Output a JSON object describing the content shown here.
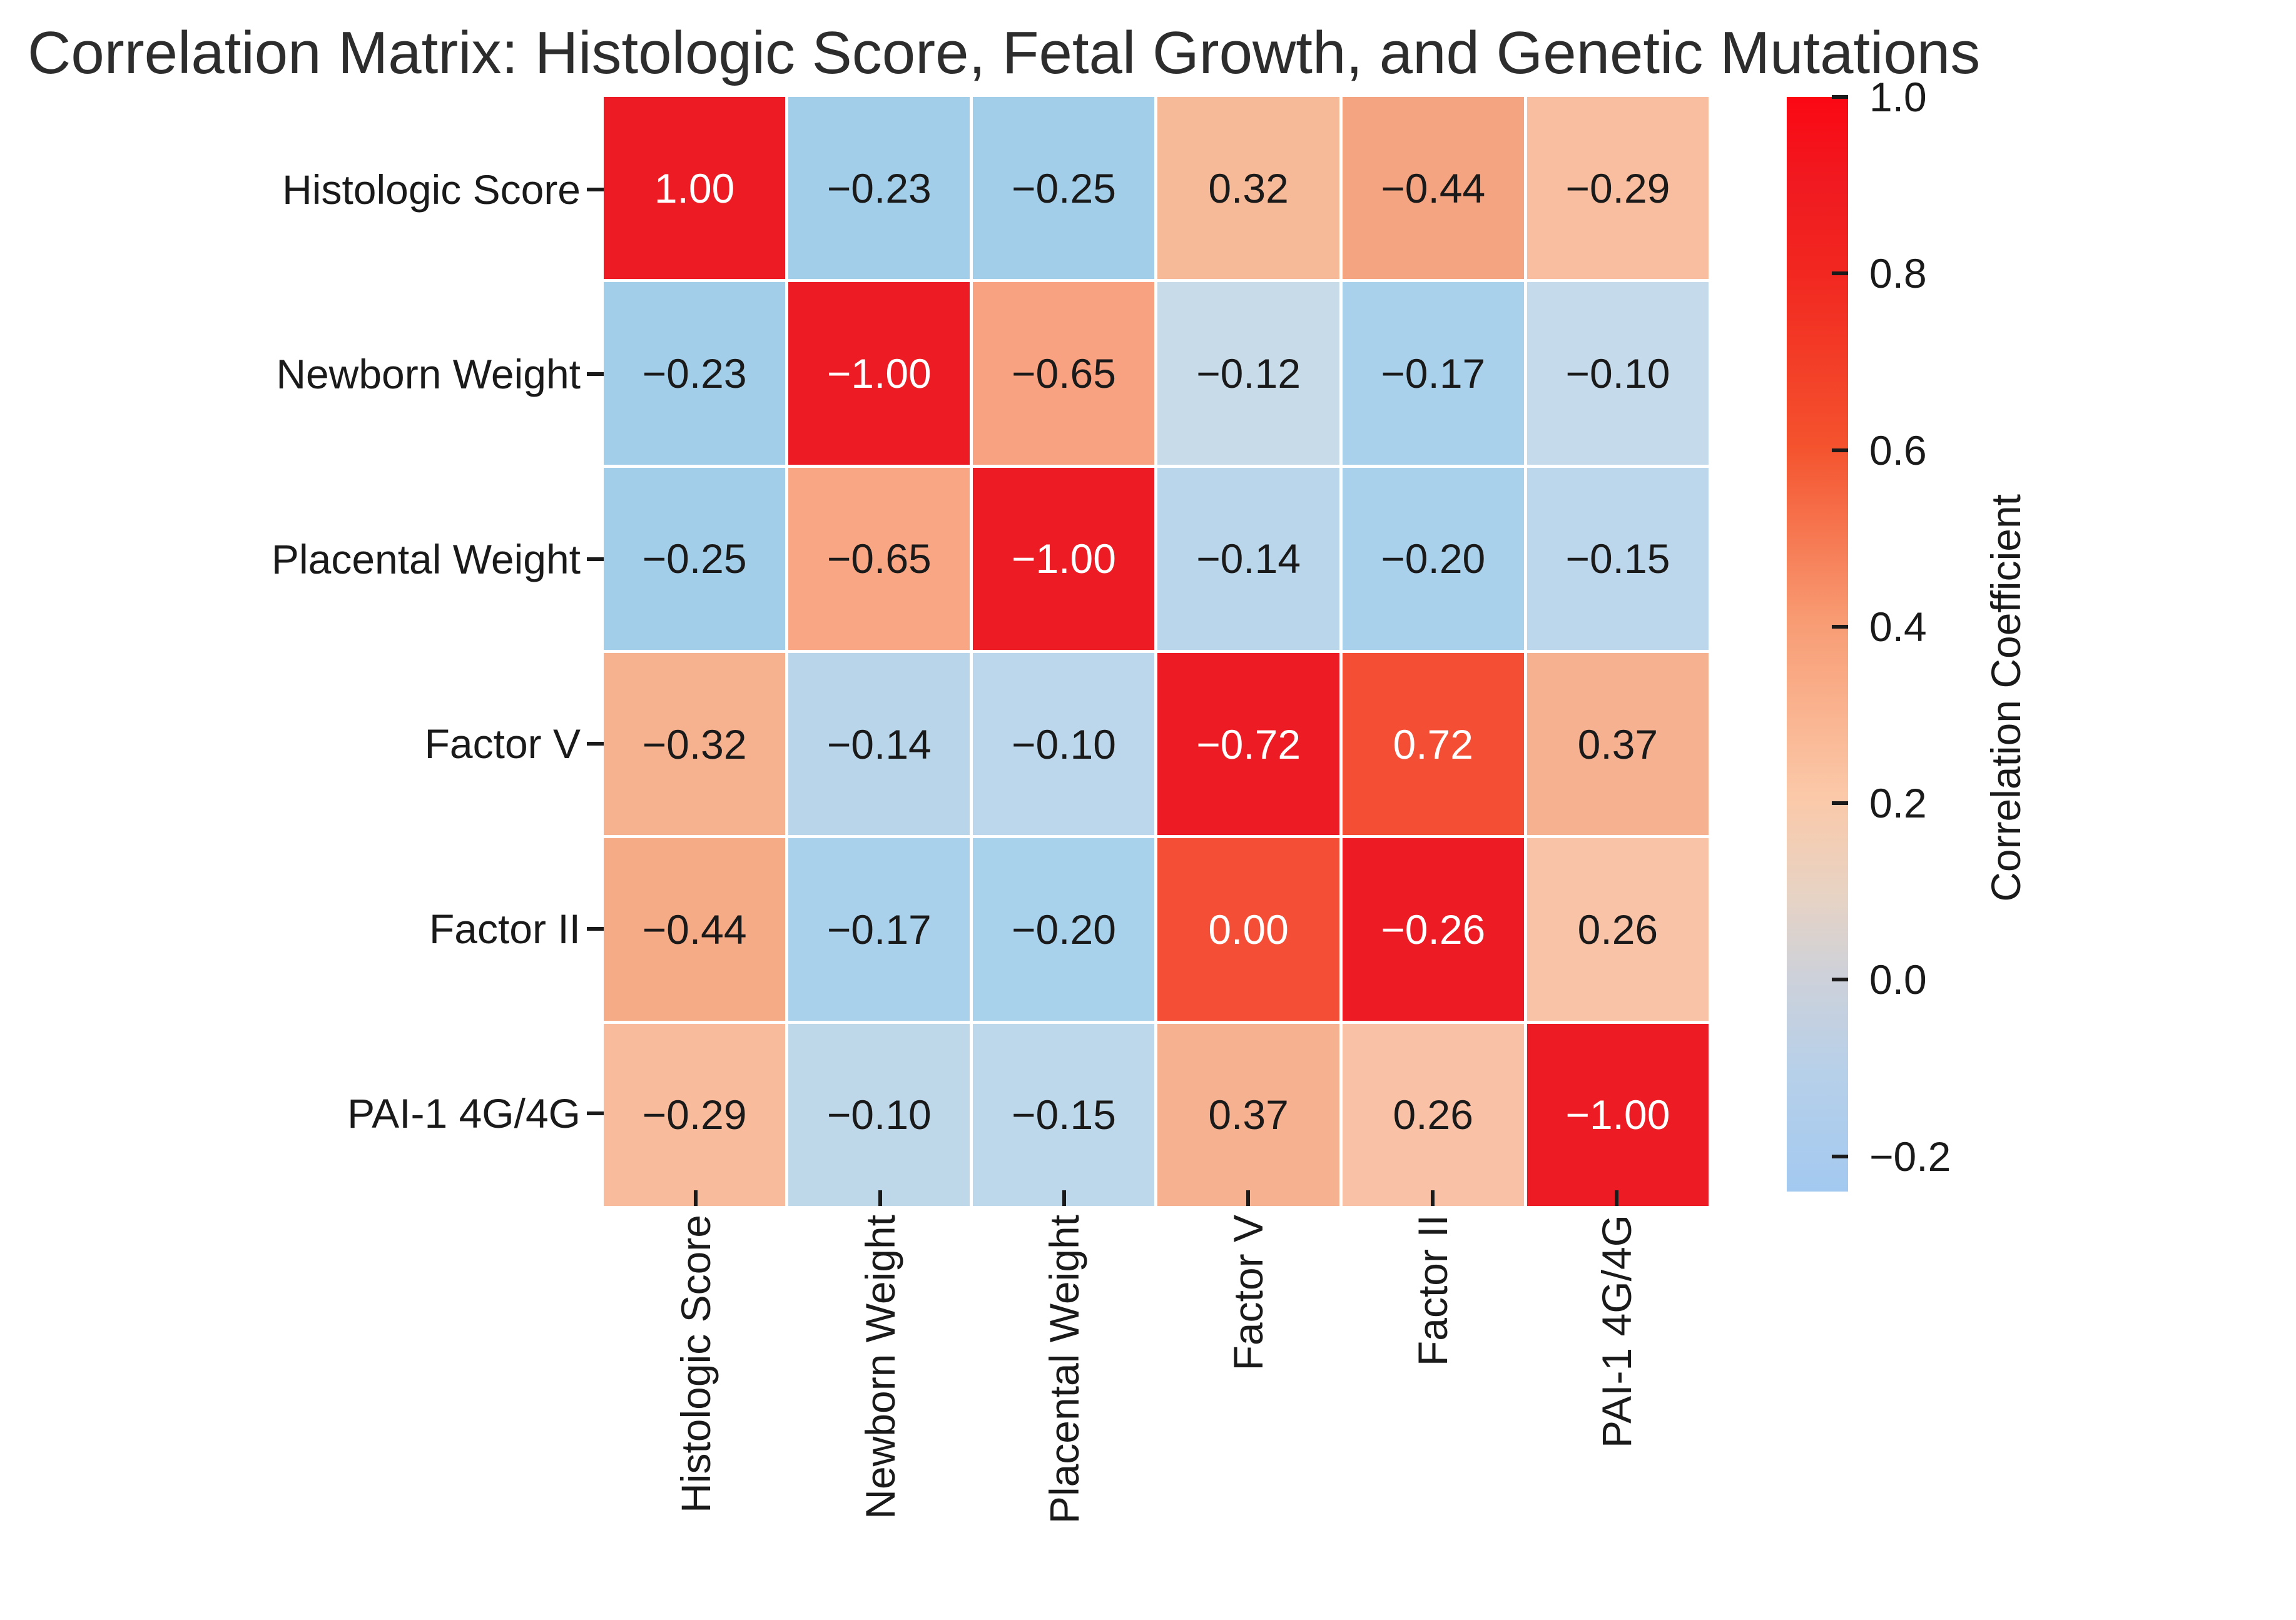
{
  "chart_data": {
    "type": "heatmap",
    "title": "Correlation Matrix: Histologic Score, Fetal Growth, and Genetic Mutations",
    "row_labels": [
      "Histologic Score",
      "Newborn Weight",
      "Placental Weight",
      "Factor V",
      "Factor II",
      "PAI-1 4G/4G"
    ],
    "col_labels": [
      "Histologic Score",
      "Newborn Weight",
      "Placental Weight",
      "Factor V",
      "Factor II",
      "PAI-1 4G/4G"
    ],
    "cell_text": [
      [
        "1.00",
        "−0.23",
        "−0.25",
        "0.32",
        "−0.44",
        "−0.29"
      ],
      [
        "−0.23",
        "−1.00",
        "−0.65",
        "−0.12",
        "−0.17",
        "−0.10"
      ],
      [
        "−0.25",
        "−0.65",
        "−1.00",
        "−0.14",
        "−0.20",
        "−0.15"
      ],
      [
        "−0.32",
        "−0.14",
        "−0.10",
        "−0.72",
        "0.72",
        "0.37"
      ],
      [
        "−0.44",
        "−0.17",
        "−0.20",
        "0.00",
        "−0.26",
        "0.26"
      ],
      [
        "−0.29",
        "−0.10",
        "−0.15",
        "0.37",
        "0.26",
        "−1.00"
      ]
    ],
    "values": [
      [
        1.0,
        -0.23,
        -0.25,
        0.32,
        -0.44,
        -0.29
      ],
      [
        -0.23,
        -1.0,
        -0.65,
        -0.12,
        -0.17,
        -0.1
      ],
      [
        -0.25,
        -0.65,
        -1.0,
        -0.14,
        -0.2,
        -0.15
      ],
      [
        -0.32,
        -0.14,
        -0.1,
        -0.72,
        0.72,
        0.37
      ],
      [
        -0.44,
        -0.17,
        -0.2,
        0.0,
        -0.26,
        0.26
      ],
      [
        -0.29,
        -0.1,
        -0.15,
        0.37,
        0.26,
        -1.0
      ]
    ],
    "cell_colors": [
      [
        "#ED1C24",
        "#A3CEE9",
        "#A3CEE9",
        "#F7BA98",
        "#F4A480",
        "#F8BE9F"
      ],
      [
        "#A3CEE9",
        "#ED1C24",
        "#F8A281",
        "#C8DBE9",
        "#A9D1EB",
        "#C5DAEA"
      ],
      [
        "#A3CEE9",
        "#F8A684",
        "#ED1C24",
        "#BAD6EA",
        "#A9D1EB",
        "#BCD7EB"
      ],
      [
        "#F6B28F",
        "#B8D5EA",
        "#BCD7EB",
        "#ED1C24",
        "#F44F35",
        "#F6B190"
      ],
      [
        "#F6AB87",
        "#A9D1EB",
        "#A8D1EB",
        "#F44F36",
        "#ED1C24",
        "#F9C3A7"
      ],
      [
        "#F8BC9D",
        "#BED8EA",
        "#BDD8EB",
        "#F6B190",
        "#F9C2A6",
        "#ED1C24"
      ]
    ],
    "cell_text_colors": [
      [
        "#ffffff",
        "#1a1a1a",
        "#1a1a1a",
        "#1a1a1a",
        "#1a1a1a",
        "#1a1a1a"
      ],
      [
        "#1a1a1a",
        "#ffffff",
        "#1a1a1a",
        "#1a1a1a",
        "#1a1a1a",
        "#1a1a1a"
      ],
      [
        "#1a1a1a",
        "#1a1a1a",
        "#ffffff",
        "#1a1a1a",
        "#1a1a1a",
        "#1a1a1a"
      ],
      [
        "#1a1a1a",
        "#1a1a1a",
        "#1a1a1a",
        "#ffffff",
        "#ffffff",
        "#1a1a1a"
      ],
      [
        "#1a1a1a",
        "#1a1a1a",
        "#1a1a1a",
        "#ffffff",
        "#ffffff",
        "#1a1a1a"
      ],
      [
        "#1a1a1a",
        "#1a1a1a",
        "#1a1a1a",
        "#1a1a1a",
        "#1a1a1a",
        "#ffffff"
      ]
    ],
    "colorbar": {
      "label": "Correlation Coefficient",
      "tick_labels": [
        "1.0",
        "0.8",
        "0.6",
        "0.4",
        "0.2",
        "0.0",
        "−0.2"
      ],
      "tick_values": [
        1.0,
        0.8,
        0.6,
        0.4,
        0.2,
        0.0,
        -0.2
      ],
      "vmax": 1.0,
      "vmin": -0.24,
      "gradient": [
        [
          "0%",
          "#FB0813"
        ],
        [
          "8%",
          "#F01A20"
        ],
        [
          "16%",
          "#F22720"
        ],
        [
          "32%",
          "#F4532E"
        ],
        [
          "48%",
          "#F89C74"
        ],
        [
          "64%",
          "#FBC9A9"
        ],
        [
          "73%",
          "#E7D3C4"
        ],
        [
          "80.5%",
          "#CDD1DA"
        ],
        [
          "89%",
          "#B7D0E9"
        ],
        [
          "100%",
          "#A3C9F0"
        ]
      ]
    }
  }
}
